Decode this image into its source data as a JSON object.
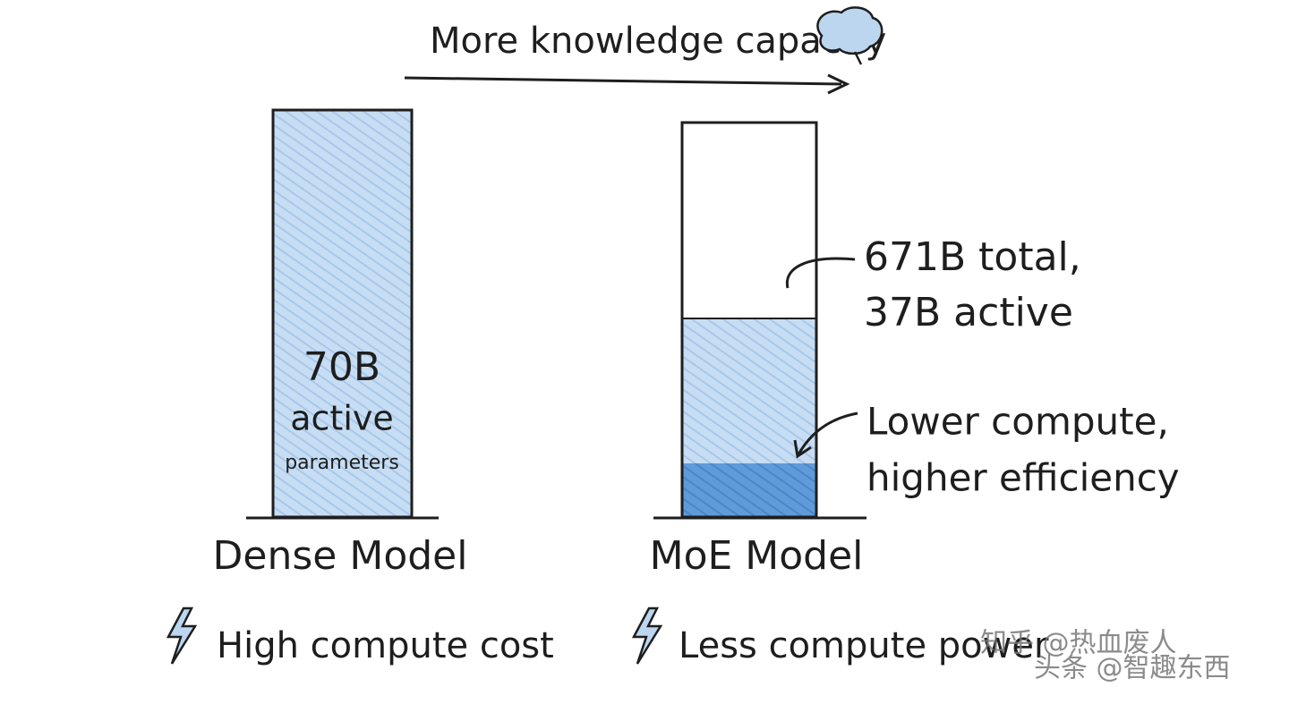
{
  "header": {
    "title": "More knowledge capacity"
  },
  "dense": {
    "label_lines": [
      "70B",
      "active",
      "parameters"
    ],
    "name": "Dense Model",
    "note": "High compute cost"
  },
  "moe": {
    "total_lines": [
      "671B total,",
      "37B active"
    ],
    "compute_lines": [
      "Lower compute,",
      "higher efficiency"
    ],
    "name": "MoE Model",
    "note": "Less compute power"
  },
  "watermarks": [
    "知乎 @热血废人",
    "头条 @智趣东西"
  ]
}
